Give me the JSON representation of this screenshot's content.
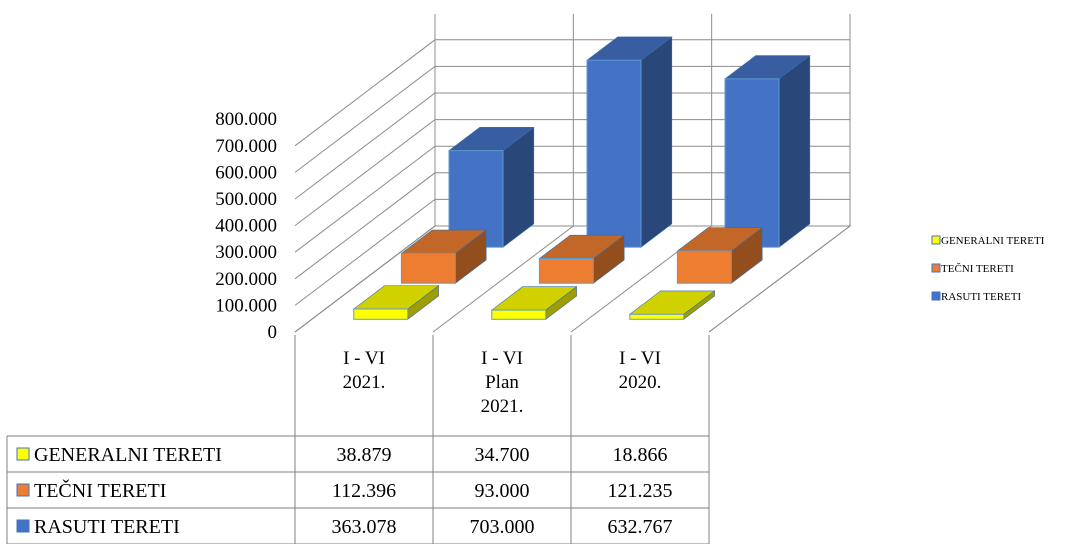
{
  "chart_data": {
    "type": "bar",
    "categories": [
      [
        "I - VI",
        "2021."
      ],
      [
        "I - VI",
        "Plan",
        "2021."
      ],
      [
        "I - VI",
        "2020."
      ]
    ],
    "series": [
      {
        "name": "GENERALNI TERETI",
        "color": "#ffff00",
        "values": [
          38879,
          34700,
          18866
        ],
        "labels": [
          "38.879",
          "34.700",
          "18.866"
        ]
      },
      {
        "name": "TEČNI TERETI",
        "color": "#ed7d31",
        "values": [
          112396,
          93000,
          121235
        ],
        "labels": [
          "112.396",
          "93.000",
          "121.235"
        ]
      },
      {
        "name": "RASUTI TERETI",
        "color": "#4472c4",
        "values": [
          363078,
          703000,
          632767
        ],
        "labels": [
          "363.078",
          "703.000",
          "632.767"
        ]
      }
    ],
    "yticks": [
      "0",
      "100.000",
      "200.000",
      "300.000",
      "400.000",
      "500.000",
      "600.000",
      "700.000",
      "800.000"
    ],
    "ylim": [
      0,
      800000
    ],
    "legend": [
      "GENERALNI TERETI",
      "TEČNI TERETI",
      "RASUTI TERETI"
    ],
    "legend_position": "right",
    "gridlines": true,
    "data_table": true,
    "style": "3d-column"
  }
}
